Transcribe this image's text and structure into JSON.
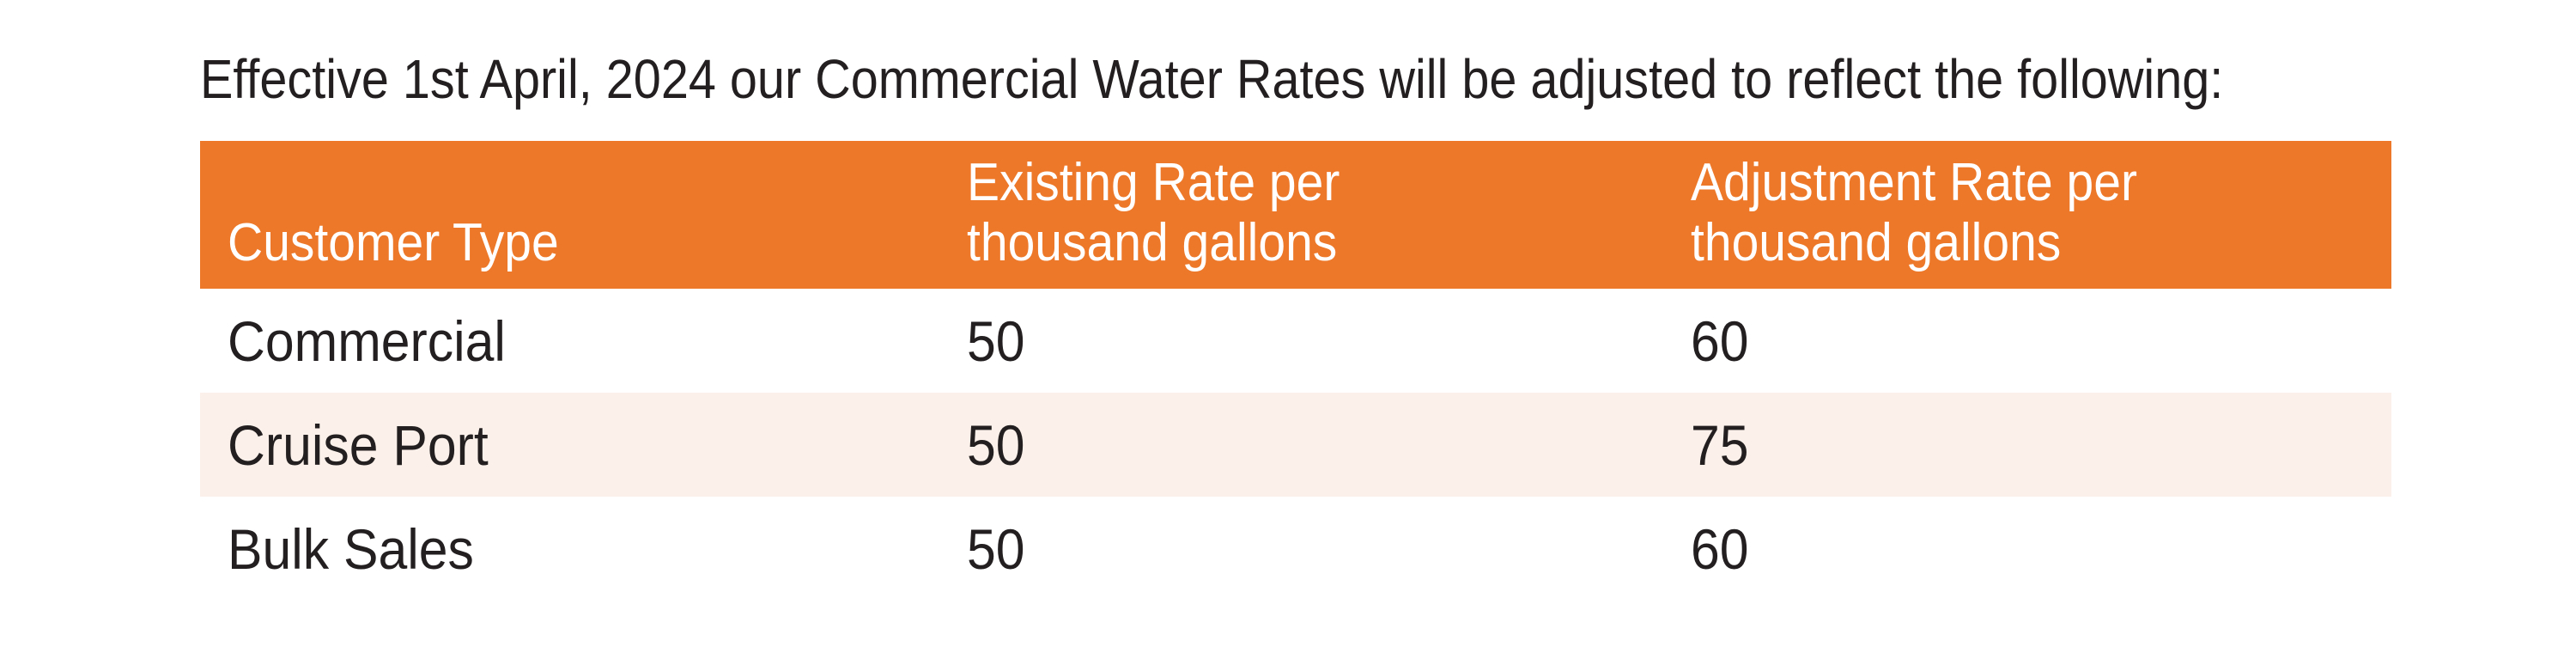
{
  "title": "Effective 1st April, 2024 our Commercial Water Rates will be adjusted to reflect the following:",
  "colors": {
    "header_bg": "#ED7829",
    "alt_row_bg": "#FBF1EA",
    "text": "#231F20"
  },
  "table": {
    "headers": [
      {
        "line1": "Customer Type",
        "line2": ""
      },
      {
        "line1": "Existing Rate per",
        "line2": "thousand gallons"
      },
      {
        "line1": "Adjustment Rate per",
        "line2": "thousand gallons"
      }
    ],
    "rows": [
      [
        "Commercial",
        "50",
        "60"
      ],
      [
        "Cruise Port",
        "50",
        "75"
      ],
      [
        "Bulk Sales",
        "50",
        "60"
      ]
    ]
  }
}
